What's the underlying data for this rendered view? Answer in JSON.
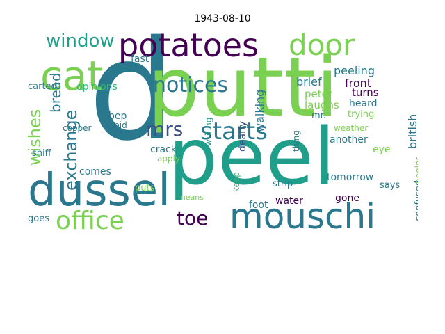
{
  "title": "1943-08-10",
  "colors": {
    "green": "#7ad151",
    "lime": "#a0da39",
    "teal": "#2a788e",
    "darkteal": "#1f9e89",
    "navy": "#414487",
    "purple": "#440154",
    "blue": "#3b528b",
    "yellow": "#d2e21b",
    "midgreen": "#35b779"
  },
  "words": {
    "putti": "putti",
    "peel": "peel",
    "d": "d",
    "dussel": "dussel",
    "mouschi": "mouschi",
    "cat": "cat",
    "potatoes": "potatoes",
    "door": "door",
    "window": "window",
    "office": "office",
    "starts": "starts",
    "notices": "notices",
    "mrs": "mrs",
    "toe": "toe",
    "wishes": "wishes",
    "exchange": "exchange",
    "bread": "bread",
    "peeling": "peeling",
    "way": "way",
    "brief": "brief",
    "front": "front",
    "peter": "peter",
    "laughs": "laughs",
    "heard": "heard",
    "mr": "mr.",
    "turns": "turns",
    "british": "british",
    "trying": "trying",
    "walking": "walking",
    "dearly": "dearly",
    "opinions": "opinions",
    "carted": "carted",
    "fast": "fast",
    "bep": "bep",
    "avoid": "avoid",
    "copper": "copper",
    "crack": "crack",
    "sniff": "sniff",
    "comes": "comes",
    "puts": "puts",
    "apply": "apply",
    "goes": "goes",
    "means": "means",
    "keep": "keep",
    "foot": "foot",
    "water": "water",
    "gone": "gone",
    "another": "another",
    "eye": "eye",
    "weather": "weather",
    "thing": "thing",
    "confused": "confused",
    "possible": "possible",
    "begins": "begins",
    "says": "says",
    "tomorrow": "tomorrow",
    "strip": "strip",
    "writing": "writing"
  }
}
